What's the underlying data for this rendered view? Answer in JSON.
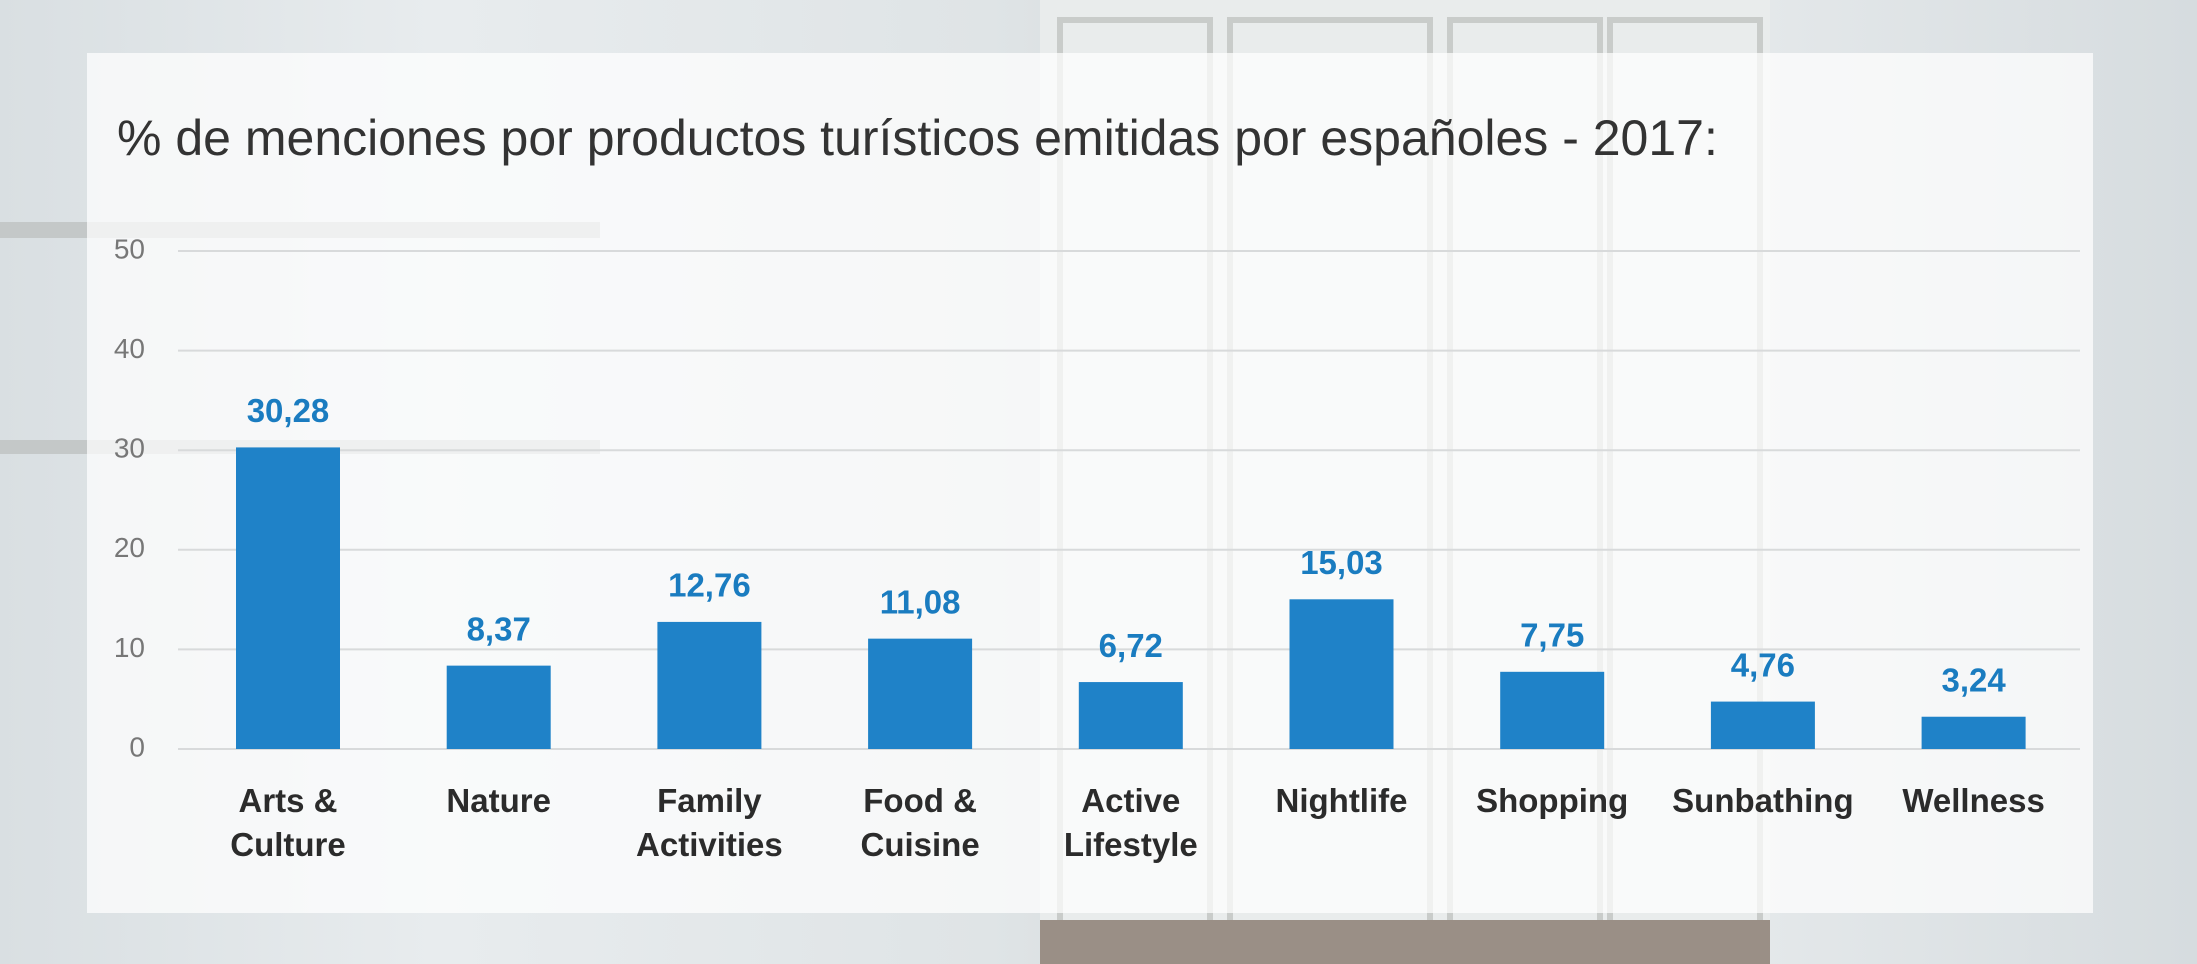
{
  "chart_data": {
    "type": "bar",
    "title": "% de menciones por productos turísticos emitidas por españoles - 2017:",
    "categories": [
      "Arts & Culture",
      "Nature",
      "Family Activities",
      "Food & Cuisine",
      "Active Lifestyle",
      "Nightlife",
      "Shopping",
      "Sunbathing",
      "Wellness"
    ],
    "values": [
      30.28,
      8.37,
      12.76,
      11.08,
      6.72,
      15.03,
      7.75,
      4.76,
      3.24
    ],
    "value_labels": [
      "30,28",
      "8,37",
      "12,76",
      "11,08",
      "6,72",
      "15,03",
      "7,75",
      "4,76",
      "3,24"
    ],
    "color": "#1f82c8",
    "ylim": [
      0,
      50
    ],
    "yticks": [
      0,
      10,
      20,
      30,
      40,
      50
    ],
    "grid": true
  }
}
